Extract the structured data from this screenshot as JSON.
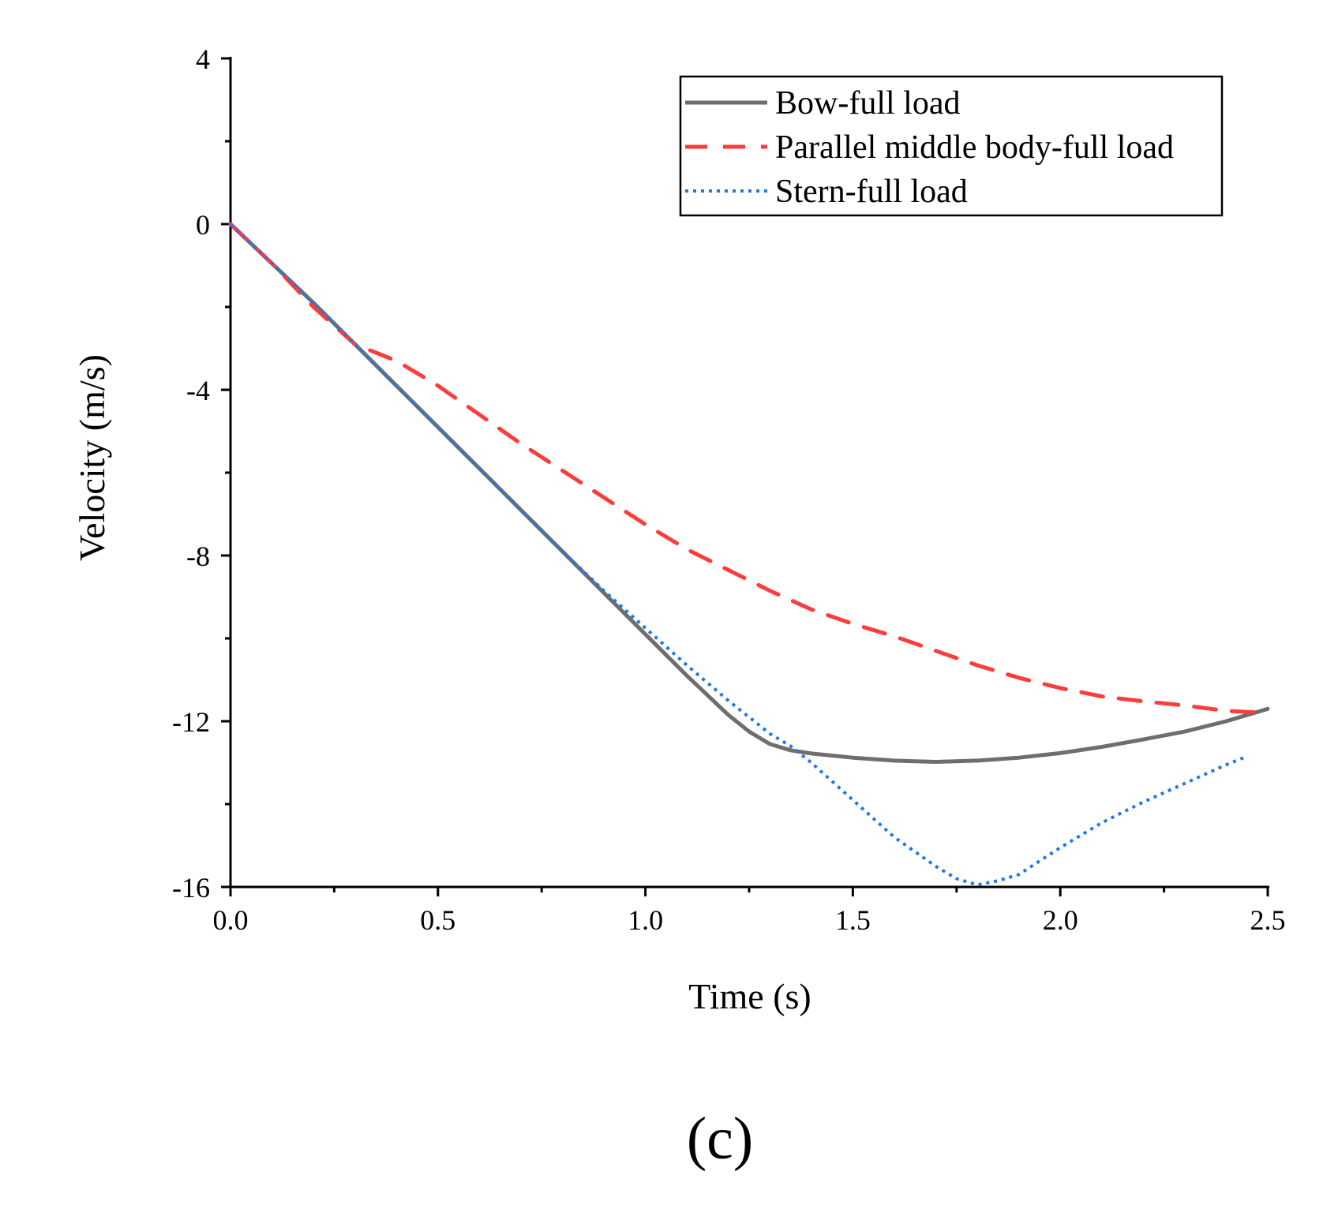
{
  "chart_data": {
    "type": "line",
    "xlabel": "Time (s)",
    "ylabel": "Velocity (m/s)",
    "xlim": [
      0.0,
      2.5
    ],
    "ylim": [
      -16,
      4
    ],
    "xticks": [
      0.0,
      0.5,
      1.0,
      1.5,
      2.0,
      2.5
    ],
    "xtick_labels": [
      "0.0",
      "0.5",
      "1.0",
      "1.5",
      "2.0",
      "2.5"
    ],
    "yticks": [
      -16,
      -12,
      -8,
      -4,
      0,
      4
    ],
    "ytick_labels": [
      "-16",
      "-12",
      "-8",
      "-4",
      "0",
      "4"
    ],
    "grid": false,
    "legend_position": "top-right",
    "panel_label": "(c)",
    "series": [
      {
        "name": "Bow-full load",
        "color": "#6e6e6e",
        "style": "solid",
        "x": [
          0,
          0.1,
          0.2,
          0.3,
          0.4,
          0.5,
          0.6,
          0.7,
          0.8,
          0.9,
          1.0,
          1.1,
          1.2,
          1.25,
          1.3,
          1.35,
          1.4,
          1.5,
          1.6,
          1.7,
          1.8,
          1.9,
          2.0,
          2.1,
          2.2,
          2.3,
          2.4,
          2.5
        ],
        "y": [
          0,
          -0.95,
          -1.9,
          -2.9,
          -3.9,
          -4.9,
          -5.9,
          -6.9,
          -7.9,
          -8.9,
          -9.9,
          -10.9,
          -11.85,
          -12.25,
          -12.55,
          -12.7,
          -12.78,
          -12.88,
          -12.95,
          -12.98,
          -12.95,
          -12.88,
          -12.77,
          -12.62,
          -12.44,
          -12.25,
          -12.0,
          -11.7
        ]
      },
      {
        "name": "Parallel middle body-full load",
        "color": "#ff3b3b",
        "style": "dashed",
        "x": [
          0,
          0.1,
          0.2,
          0.3,
          0.4,
          0.5,
          0.6,
          0.7,
          0.8,
          0.9,
          1.0,
          1.1,
          1.2,
          1.3,
          1.4,
          1.5,
          1.6,
          1.7,
          1.8,
          1.9,
          2.0,
          2.1,
          2.2,
          2.3,
          2.4,
          2.5
        ],
        "y": [
          0,
          -0.95,
          -2.0,
          -2.9,
          -3.3,
          -3.9,
          -4.6,
          -5.3,
          -5.95,
          -6.6,
          -7.25,
          -7.85,
          -8.35,
          -8.85,
          -9.3,
          -9.65,
          -9.95,
          -10.3,
          -10.65,
          -10.95,
          -11.2,
          -11.4,
          -11.52,
          -11.62,
          -11.75,
          -11.8
        ]
      },
      {
        "name": "Stern-full load",
        "color": "#1f77e8",
        "style": "dotted",
        "x": [
          0,
          0.1,
          0.2,
          0.3,
          0.4,
          0.5,
          0.6,
          0.7,
          0.8,
          0.9,
          1.0,
          1.1,
          1.2,
          1.3,
          1.35,
          1.4,
          1.5,
          1.6,
          1.7,
          1.75,
          1.8,
          1.85,
          1.9,
          2.0,
          2.1,
          2.2,
          2.3,
          2.4,
          2.45
        ],
        "y": [
          0,
          -0.95,
          -1.9,
          -2.9,
          -3.9,
          -4.9,
          -5.9,
          -6.9,
          -7.9,
          -8.85,
          -9.75,
          -10.65,
          -11.5,
          -12.3,
          -12.6,
          -13.0,
          -13.9,
          -14.8,
          -15.5,
          -15.8,
          -15.95,
          -15.85,
          -15.7,
          -15.05,
          -14.45,
          -13.95,
          -13.5,
          -13.05,
          -12.85
        ]
      }
    ]
  }
}
